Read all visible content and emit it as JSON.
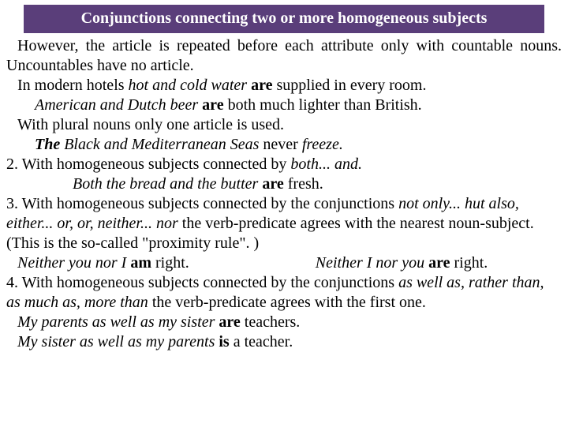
{
  "header": "Conjunctions connecting two or more homogeneous subjects",
  "p1a": "However, the article is repeated before each attribute only with countable nouns. Uncountables have no article.",
  "p2_pre": "In modern hotels ",
  "p2_i": "hot and cold water ",
  "p2_b": "are",
  "p2_post": " supplied in every room.",
  "p3_i": "American and Dutch beer ",
  "p3_b": "are",
  "p3_post": " both much lighter than British.",
  "p4": "With plural nouns only one article is used.",
  "p5_bi": "The ",
  "p5_i": "Black and Mediterranean Seas",
  "p5_post": " never ",
  "p5_i2": "freeze.",
  "p6_pre": "2. With homogeneous subjects connected by ",
  "p6_i": "both... and.",
  "p7_i1": "Both the bread and the butter ",
  "p7_b": "are",
  "p7_post": " fresh.",
  "p8_pre": "3. With homogeneous subjects connected by the conjunctions ",
  "p8_i": "not only... hut also, either... or, or, neither... nor",
  "p8_mid": " the verb-predicate agrees with the nearest noun-subject. (This is the so-called \"proximity rule\". )",
  "p9_i1": "Neither you nor I ",
  "p9_b1": "am",
  "p9_mid": " right.",
  "p9_i2": "Neither I nor you ",
  "p9_b2": "are",
  "p9_post": " right.",
  "p10_pre": "4. With homogeneous subjects connected by the conjunctions ",
  "p10_i": "as well as, rather than, as much as, more than",
  "p10_post": " the verb-predicate agrees with the first one.",
  "p11_i": "My parents as well as my sister ",
  "p11_b": "are",
  "p11_post": " teachers.",
  "p12_i": "My sister as well as my parents ",
  "p12_b": "is",
  "p12_post": " a teacher."
}
